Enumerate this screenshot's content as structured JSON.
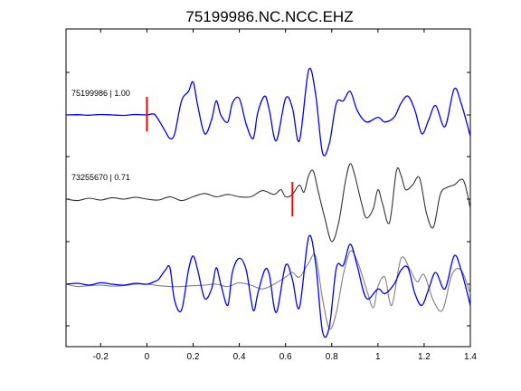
{
  "chart_data": {
    "type": "line",
    "title": "75199986.NC.NCC.EHZ",
    "xlabel": "",
    "ylabel": "",
    "xlim": [
      -0.35,
      1.4
    ],
    "x_ticks": [
      -0.2,
      0,
      0.2,
      0.4,
      0.6,
      0.8,
      1,
      1.2,
      1.4
    ],
    "x_tick_labels": [
      "-0.2",
      "0",
      "0.2",
      "0.4",
      "0.6",
      "0.8",
      "1",
      "1.2",
      "1.4"
    ],
    "grid": false,
    "colors": {
      "reference": "#0000ff",
      "comparison": "#333333",
      "comparison_overlay": "#808080",
      "pick": "#ff0000"
    },
    "traces": [
      {
        "label": "75199986 | 1.00",
        "pick_time": 0.0,
        "x": [
          -0.35,
          -0.3,
          -0.25,
          -0.2,
          -0.15,
          -0.1,
          -0.05,
          0,
          0.03,
          0.05,
          0.08,
          0.1,
          0.12,
          0.15,
          0.18,
          0.2,
          0.22,
          0.25,
          0.28,
          0.3,
          0.32,
          0.35,
          0.37,
          0.4,
          0.43,
          0.46,
          0.48,
          0.51,
          0.53,
          0.56,
          0.6,
          0.63,
          0.66,
          0.7,
          0.73,
          0.76,
          0.79,
          0.82,
          0.85,
          0.88,
          0.91,
          0.95,
          1,
          1.03,
          1.07,
          1.1,
          1.13,
          1.16,
          1.19,
          1.22,
          1.25,
          1.29,
          1.33,
          1.36,
          1.4
        ],
        "y": [
          0,
          0.005,
          -0.005,
          0.01,
          0,
          -0.01,
          0.01,
          0,
          0.02,
          -0.1,
          -0.35,
          -0.5,
          -0.4,
          0.3,
          0.5,
          0.7,
          0.2,
          -0.4,
          -0.1,
          0.3,
          0,
          -0.15,
          0.25,
          0.35,
          -0.2,
          -0.5,
          0.05,
          0.4,
          0.1,
          -0.55,
          0.35,
          0.15,
          -0.55,
          0.95,
          0.45,
          -0.8,
          -0.6,
          0.25,
          0.3,
          0.5,
          0.1,
          -0.15,
          -0.05,
          -0.15,
          -0.05,
          0.25,
          0.4,
          0.1,
          -0.4,
          -0.1,
          0.2,
          -0.25,
          0.55,
          0.25,
          -0.45
        ]
      },
      {
        "label": "73255670 | 0.71",
        "pick_time": 0.63,
        "x": [
          -0.35,
          -0.3,
          -0.25,
          -0.2,
          -0.15,
          -0.1,
          -0.05,
          0,
          0.05,
          0.1,
          0.15,
          0.2,
          0.25,
          0.3,
          0.35,
          0.4,
          0.45,
          0.5,
          0.55,
          0.58,
          0.6,
          0.63,
          0.66,
          0.68,
          0.7,
          0.72,
          0.74,
          0.77,
          0.8,
          0.83,
          0.86,
          0.88,
          0.9,
          0.93,
          0.95,
          0.98,
          1.0,
          1.02,
          1.05,
          1.08,
          1.1,
          1.12,
          1.15,
          1.18,
          1.21,
          1.24,
          1.27,
          1.3,
          1.33,
          1.37,
          1.4
        ],
        "y": [
          0,
          -0.03,
          0.02,
          -0.02,
          0.03,
          0,
          0.04,
          0,
          -0.02,
          0.05,
          -0.03,
          0.05,
          0.12,
          0.05,
          0.1,
          0.05,
          0.05,
          0.18,
          0.1,
          0.2,
          0.05,
          0.1,
          0.3,
          0.15,
          0.5,
          0.6,
          0.2,
          -0.4,
          -0.9,
          -0.5,
          0.4,
          0.75,
          0.5,
          -0.1,
          -0.4,
          -0.2,
          0.2,
          -0.1,
          -0.5,
          0.6,
          0.5,
          0.2,
          0.3,
          0.45,
          -0.3,
          -0.6,
          0.1,
          0.25,
          0.3,
          0.4,
          -0.2
        ]
      }
    ],
    "overlay": {
      "label": "",
      "reference_x": [
        -0.35,
        -0.3,
        -0.25,
        -0.2,
        -0.15,
        -0.1,
        -0.05,
        0,
        0.03,
        0.05,
        0.08,
        0.1,
        0.12,
        0.15,
        0.18,
        0.2,
        0.22,
        0.25,
        0.28,
        0.3,
        0.32,
        0.35,
        0.37,
        0.4,
        0.43,
        0.46,
        0.48,
        0.51,
        0.53,
        0.56,
        0.6,
        0.63,
        0.66,
        0.7,
        0.73,
        0.76,
        0.79,
        0.82,
        0.85,
        0.88,
        0.91,
        0.95,
        1,
        1.03,
        1.07,
        1.1,
        1.13,
        1.16,
        1.19,
        1.22,
        1.25,
        1.29,
        1.33,
        1.36,
        1.4
      ],
      "reference_y": [
        0,
        0.02,
        -0.02,
        0.03,
        0,
        -0.02,
        0.02,
        0,
        0.05,
        0.1,
        0.3,
        0.35,
        -0.35,
        -0.55,
        0.3,
        0.6,
        0.3,
        -0.3,
        -0.1,
        0.35,
        0,
        -0.45,
        0.25,
        0.55,
        0.3,
        -0.55,
        -0.2,
        0.3,
        0.2,
        -0.6,
        0.4,
        0.1,
        -0.5,
        1.0,
        0.45,
        -1.0,
        -0.9,
        0.35,
        0.4,
        0.85,
        0.4,
        -0.3,
        -0.1,
        -0.2,
        0,
        0.3,
        0.35,
        -0.2,
        -0.45,
        -0.1,
        0.25,
        -0.1,
        0.6,
        0.3,
        -0.45
      ],
      "comparison_x": [
        -0.35,
        -0.3,
        -0.25,
        -0.2,
        -0.15,
        -0.1,
        -0.05,
        0,
        0.05,
        0.1,
        0.15,
        0.2,
        0.25,
        0.3,
        0.35,
        0.4,
        0.45,
        0.5,
        0.55,
        0.6,
        0.63,
        0.66,
        0.7,
        0.73,
        0.76,
        0.79,
        0.82,
        0.85,
        0.88,
        0.91,
        0.95,
        0.98,
        1.0,
        1.03,
        1.06,
        1.1,
        1.14,
        1.17,
        1.2,
        1.24,
        1.28,
        1.32,
        1.36,
        1.4
      ],
      "comparison_y": [
        0,
        -0.05,
        -0.03,
        -0.02,
        -0.04,
        -0.03,
        0,
        0,
        -0.03,
        -0.05,
        -0.05,
        -0.03,
        -0.02,
        0,
        -0.05,
        0.03,
        -0.02,
        -0.1,
        0,
        0.15,
        0.25,
        0.15,
        0.45,
        0.6,
        -0.3,
        -0.95,
        -0.6,
        0.2,
        0.7,
        0.5,
        -0.1,
        -0.5,
        -0.05,
        0.15,
        -0.45,
        0.55,
        0.3,
        0.05,
        0.2,
        -0.35,
        -0.55,
        0.2,
        0.3,
        -0.2
      ]
    }
  }
}
